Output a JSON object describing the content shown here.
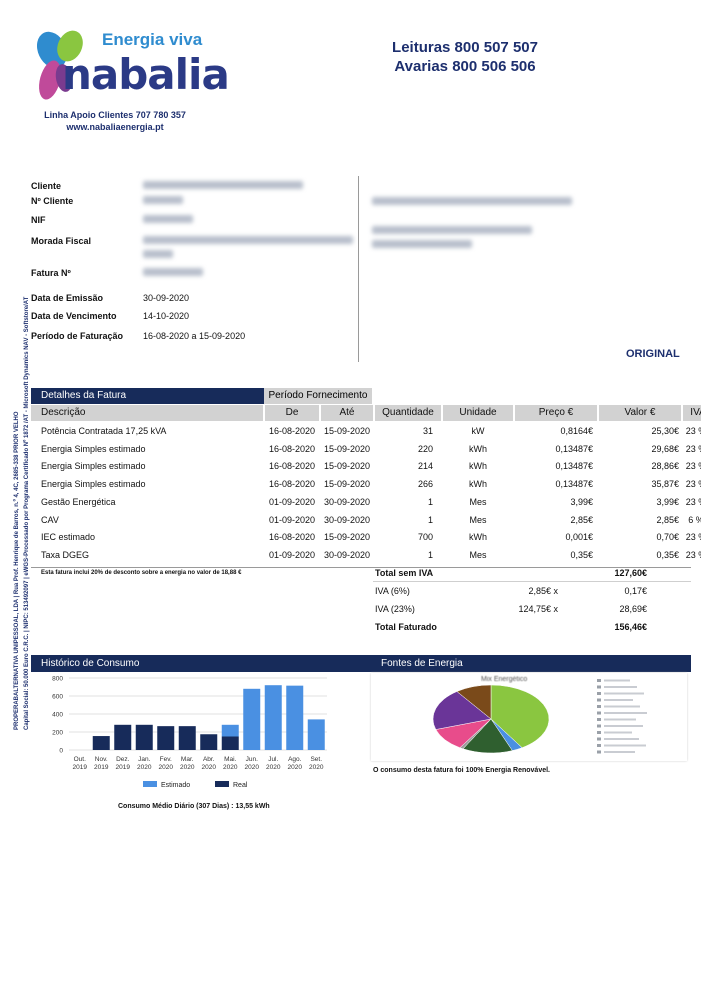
{
  "header": {
    "brand_tagline": "Energia viva",
    "brand_name": "nabalia",
    "support_line": "Linha Apoio Clientes 707 780 357",
    "website": "www.nabaliaenergia.pt",
    "readings_line": "Leituras  800 507 507",
    "faults_line": "Avarias 800 506 506"
  },
  "client": {
    "cliente_label": "Cliente",
    "num_cliente_label": "Nº Cliente",
    "nif_label": "NIF",
    "morada_label": "Morada Fiscal",
    "fatura_label": "Fatura Nº",
    "emissao_label": "Data de Emissão",
    "emissao_value": "30-09-2020",
    "vencimento_label": "Data de Vencimento",
    "vencimento_value": "14-10-2020",
    "periodo_label": "Período de Faturação",
    "periodo_value": "16-08-2020 a 15-09-2020",
    "original_label": "ORIGINAL"
  },
  "side_text": {
    "line1": "PROPERABALTERNATIVA UNIPESSOAL, LDA | Rua Prof. Henrique de Barros, n.º 4, 4C, 2685-338 PRIOR VELHO",
    "line2": "Capital Social: 50.000 Euro C.R.C. | NIPC: 513492097 | eWGS-Processado por Programa Certificado Nº 1872 /AT - Microsoft Dynamics NAV - Softstore/AT"
  },
  "details": {
    "section_title": "Detalhes da Fatura",
    "period_title": "Período Fornecimento",
    "columns": [
      "Descrição",
      "De",
      "Até",
      "Quantidade",
      "Unidade",
      "Preço €",
      "Valor €",
      "IVA"
    ],
    "rows": [
      {
        "desc": "Potência Contratada 17,25 kVA",
        "de": "16-08-2020",
        "ate": "15-09-2020",
        "qtd": "31",
        "un": "kW",
        "preco": "0,8164€",
        "valor": "25,30€",
        "iva": "23 %"
      },
      {
        "desc": "Energia Simples estimado",
        "de": "16-08-2020",
        "ate": "15-09-2020",
        "qtd": "220",
        "un": "kWh",
        "preco": "0,13487€",
        "valor": "29,68€",
        "iva": "23 %"
      },
      {
        "desc": "Energia Simples estimado",
        "de": "16-08-2020",
        "ate": "15-09-2020",
        "qtd": "214",
        "un": "kWh",
        "preco": "0,13487€",
        "valor": "28,86€",
        "iva": "23 %"
      },
      {
        "desc": "Energia Simples estimado",
        "de": "16-08-2020",
        "ate": "15-09-2020",
        "qtd": "266",
        "un": "kWh",
        "preco": "0,13487€",
        "valor": "35,87€",
        "iva": "23 %"
      },
      {
        "desc": "Gestão Energética",
        "de": "01-09-2020",
        "ate": "30-09-2020",
        "qtd": "1",
        "un": "Mes",
        "preco": "3,99€",
        "valor": "3,99€",
        "iva": "23 %"
      },
      {
        "desc": "CAV",
        "de": "01-09-2020",
        "ate": "30-09-2020",
        "qtd": "1",
        "un": "Mes",
        "preco": "2,85€",
        "valor": "2,85€",
        "iva": "6 %"
      },
      {
        "desc": "IEC estimado",
        "de": "16-08-2020",
        "ate": "15-09-2020",
        "qtd": "700",
        "un": "kWh",
        "preco": "0,001€",
        "valor": "0,70€",
        "iva": "23 %"
      },
      {
        "desc": "Taxa DGEG",
        "de": "01-09-2020",
        "ate": "30-09-2020",
        "qtd": "1",
        "un": "Mes",
        "preco": "0,35€",
        "valor": "0,35€",
        "iva": "23 %"
      }
    ],
    "discount_note": "Esta fatura inclui 20% de desconto sobre a energia no valor de 18,88 €"
  },
  "totals": {
    "sem_iva_label": "Total sem IVA",
    "sem_iva_value": "127,60€",
    "iva6_label": "IVA (6%)",
    "iva6_base": "2,85€ x",
    "iva6_value": "0,17€",
    "iva23_label": "IVA (23%)",
    "iva23_base": "124,75€ x",
    "iva23_value": "28,69€",
    "faturado_label": "Total Faturado",
    "faturado_value": "156,46€"
  },
  "history": {
    "title": "Histórico de Consumo",
    "average_note": "Consumo Médio Diário (307 Dias) : 13,55 kWh"
  },
  "energy": {
    "title": "Fontes de Energia",
    "pie_title": "Mix Energético",
    "note": "O consumo desta fatura foi 100% Energia Renovável."
  },
  "chart_data": [
    {
      "type": "bar",
      "stacked": true,
      "categories": [
        "Out.\n2019",
        "Nov.\n2019",
        "Dez.\n2019",
        "Jan.\n2020",
        "Fev.\n2020",
        "Mar.\n2020",
        "Abr.\n2020",
        "Mai.\n2020",
        "Jun.\n2020",
        "Jul.\n2020",
        "Ago.\n2020",
        "Set.\n2020"
      ],
      "series": [
        {
          "name": "Real",
          "color": "#172b5a",
          "values": [
            0,
            155,
            280,
            280,
            265,
            265,
            175,
            150,
            0,
            0,
            0,
            0
          ]
        },
        {
          "name": "Estimado",
          "color": "#4a90e2",
          "values": [
            0,
            0,
            0,
            0,
            0,
            0,
            0,
            130,
            680,
            720,
            715,
            340
          ]
        }
      ],
      "yticks": [
        0,
        200,
        400,
        600,
        800
      ],
      "ylim": [
        0,
        800
      ],
      "legend_position": "bottom"
    },
    {
      "type": "pie",
      "title": "Mix Energético",
      "slices": [
        {
          "color": "#8ac640",
          "value": 41
        },
        {
          "color": "#4a90e2",
          "value": 3
        },
        {
          "color": "#2f5f2f",
          "value": 14
        },
        {
          "color": "#9b9b9b",
          "value": 1
        },
        {
          "color": "#e84c8b",
          "value": 11
        },
        {
          "color": "#6a3598",
          "value": 20
        },
        {
          "color": "#7a4a1a",
          "value": 10
        }
      ],
      "legend_position": "right"
    }
  ]
}
